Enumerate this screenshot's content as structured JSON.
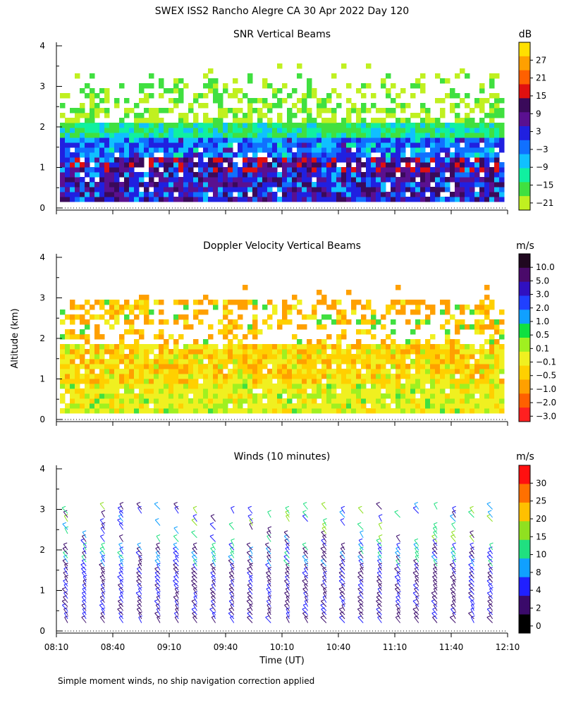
{
  "header": {
    "title": "SWEX ISS2 Rancho Alegre CA  30 Apr 2022 Day 120"
  },
  "footnote": "Simple moment winds, no ship navigation correction applied",
  "y_axis_label": "Altitude (km)",
  "x_axis_label": "Time (UT)",
  "chart_data": [
    {
      "type": "heatmap",
      "title": "SNR Vertical Beams",
      "xlabel": "",
      "ylabel": "Altitude (km)",
      "xlim": [
        "08:10",
        "12:10"
      ],
      "ylim": [
        0,
        4
      ],
      "yticks": [
        "0",
        "1",
        "2",
        "3",
        "4"
      ],
      "colorbar": {
        "unit": "dB",
        "labels": [
          "27",
          "21",
          "15",
          "9",
          "3",
          "−3",
          "−9",
          "−15",
          "−21"
        ],
        "colors": [
          "#ffe000",
          "#ffa000",
          "#ff6000",
          "#e01010",
          "#3a0a5a",
          "#5a1090",
          "#2020e0",
          "#1070ff",
          "#10c0ff",
          "#10f0a0",
          "#40e040",
          "#c0f020"
        ]
      }
    },
    {
      "type": "heatmap",
      "title": "Doppler Velocity Vertical Beams",
      "xlabel": "",
      "ylabel": "Altitude (km)",
      "xlim": [
        "08:10",
        "12:10"
      ],
      "ylim": [
        0,
        4
      ],
      "yticks": [
        "0",
        "1",
        "2",
        "3",
        "4"
      ],
      "colorbar": {
        "unit": "m/s",
        "labels": [
          "10.0",
          "5.0",
          "3.0",
          "2.0",
          "1.0",
          "0.5",
          "0.1",
          "−0.1",
          "−0.5",
          "−1.0",
          "−2.0",
          "−3.0"
        ],
        "colors": [
          "#200820",
          "#4a0a6a",
          "#3010c0",
          "#2040ff",
          "#10a0ff",
          "#10e040",
          "#a0f020",
          "#f0f020",
          "#ffd000",
          "#ffa000",
          "#ff6000",
          "#ff2020"
        ]
      }
    },
    {
      "type": "scatter",
      "title": "Winds (10 minutes)",
      "xlabel": "Time (UT)",
      "ylabel": "Altitude (km)",
      "xlim": [
        "08:10",
        "12:10"
      ],
      "ylim": [
        0,
        4
      ],
      "yticks": [
        "0",
        "1",
        "2",
        "3",
        "4"
      ],
      "xticks": [
        "08:10",
        "08:40",
        "09:10",
        "09:40",
        "10:10",
        "10:40",
        "11:10",
        "11:40",
        "12:10"
      ],
      "colorbar": {
        "unit": "m/s",
        "labels": [
          "30",
          "25",
          "20",
          "15",
          "10",
          "8",
          "4",
          "2",
          "0"
        ],
        "colors": [
          "#ff1010",
          "#ff7000",
          "#ffc000",
          "#90e020",
          "#20e080",
          "#10a0ff",
          "#2020ff",
          "#3a0a6a",
          "#000000"
        ]
      }
    }
  ]
}
